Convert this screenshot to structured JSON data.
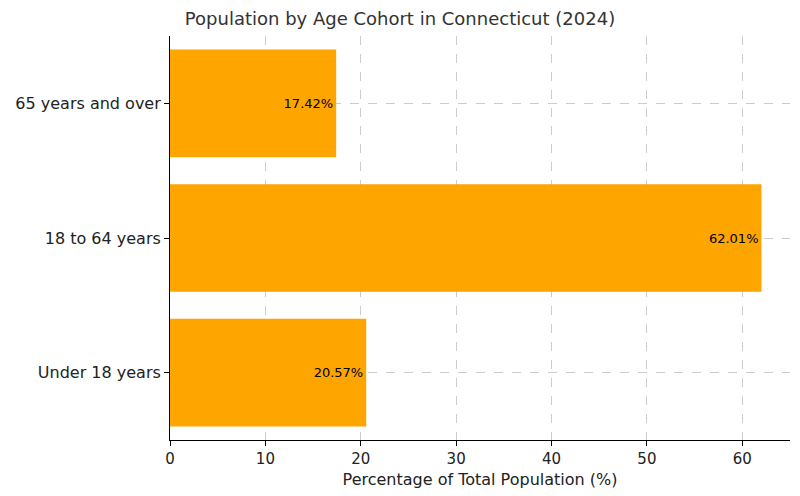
{
  "chart_data": {
    "type": "bar",
    "orientation": "horizontal",
    "title": "Population by Age Cohort in Connecticut (2024)",
    "x_label": "Percentage of Total Population (%)",
    "categories": [
      "Under 18 years",
      "18 to 64 years",
      "65 years and over"
    ],
    "values": [
      20.57,
      62.01,
      17.42
    ],
    "value_labels": [
      "20.57%",
      "62.01%",
      "17.42%"
    ],
    "data_labels": true,
    "color": "#ffa500",
    "xlim": [
      0,
      65
    ],
    "xticks": [
      0,
      10,
      20,
      30,
      40,
      50,
      60
    ],
    "grid": true
  }
}
